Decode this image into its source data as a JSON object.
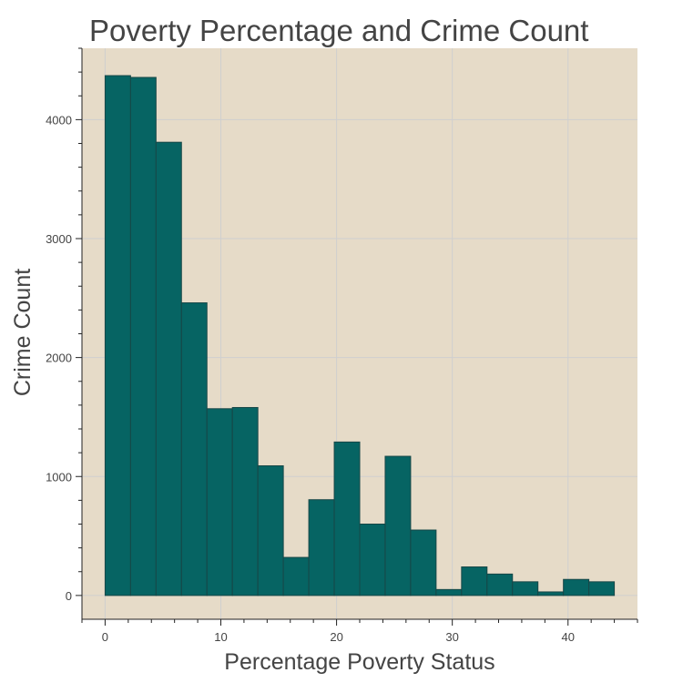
{
  "chart_data": {
    "type": "bar",
    "title": "Poverty Percentage and Crime Count",
    "xlabel": "Percentage Poverty Status",
    "ylabel": "Crime Count",
    "xlim": [
      -2,
      46
    ],
    "ylim": [
      -200,
      4600
    ],
    "x_ticks": [
      0,
      10,
      20,
      30,
      40
    ],
    "y_ticks": [
      0,
      1000,
      2000,
      3000,
      4000
    ],
    "bin_edges": [
      0.0,
      2.2,
      4.4,
      6.6,
      8.8,
      11.0,
      13.2,
      15.4,
      17.6,
      19.8,
      22.0,
      24.2,
      26.4,
      28.6,
      30.8,
      33.0,
      35.2,
      37.4,
      39.6,
      41.8,
      44.0
    ],
    "values": [
      4370,
      4355,
      3810,
      2460,
      1570,
      1580,
      1090,
      320,
      805,
      1290,
      600,
      1170,
      550,
      50,
      240,
      180,
      115,
      30,
      135,
      115
    ],
    "grid": true,
    "colors": {
      "bar_fill": "#066463",
      "bar_edge": "#174747",
      "plot_background": "#e6dbc8",
      "grid": "#cfcfcf",
      "text": "#444444"
    }
  }
}
